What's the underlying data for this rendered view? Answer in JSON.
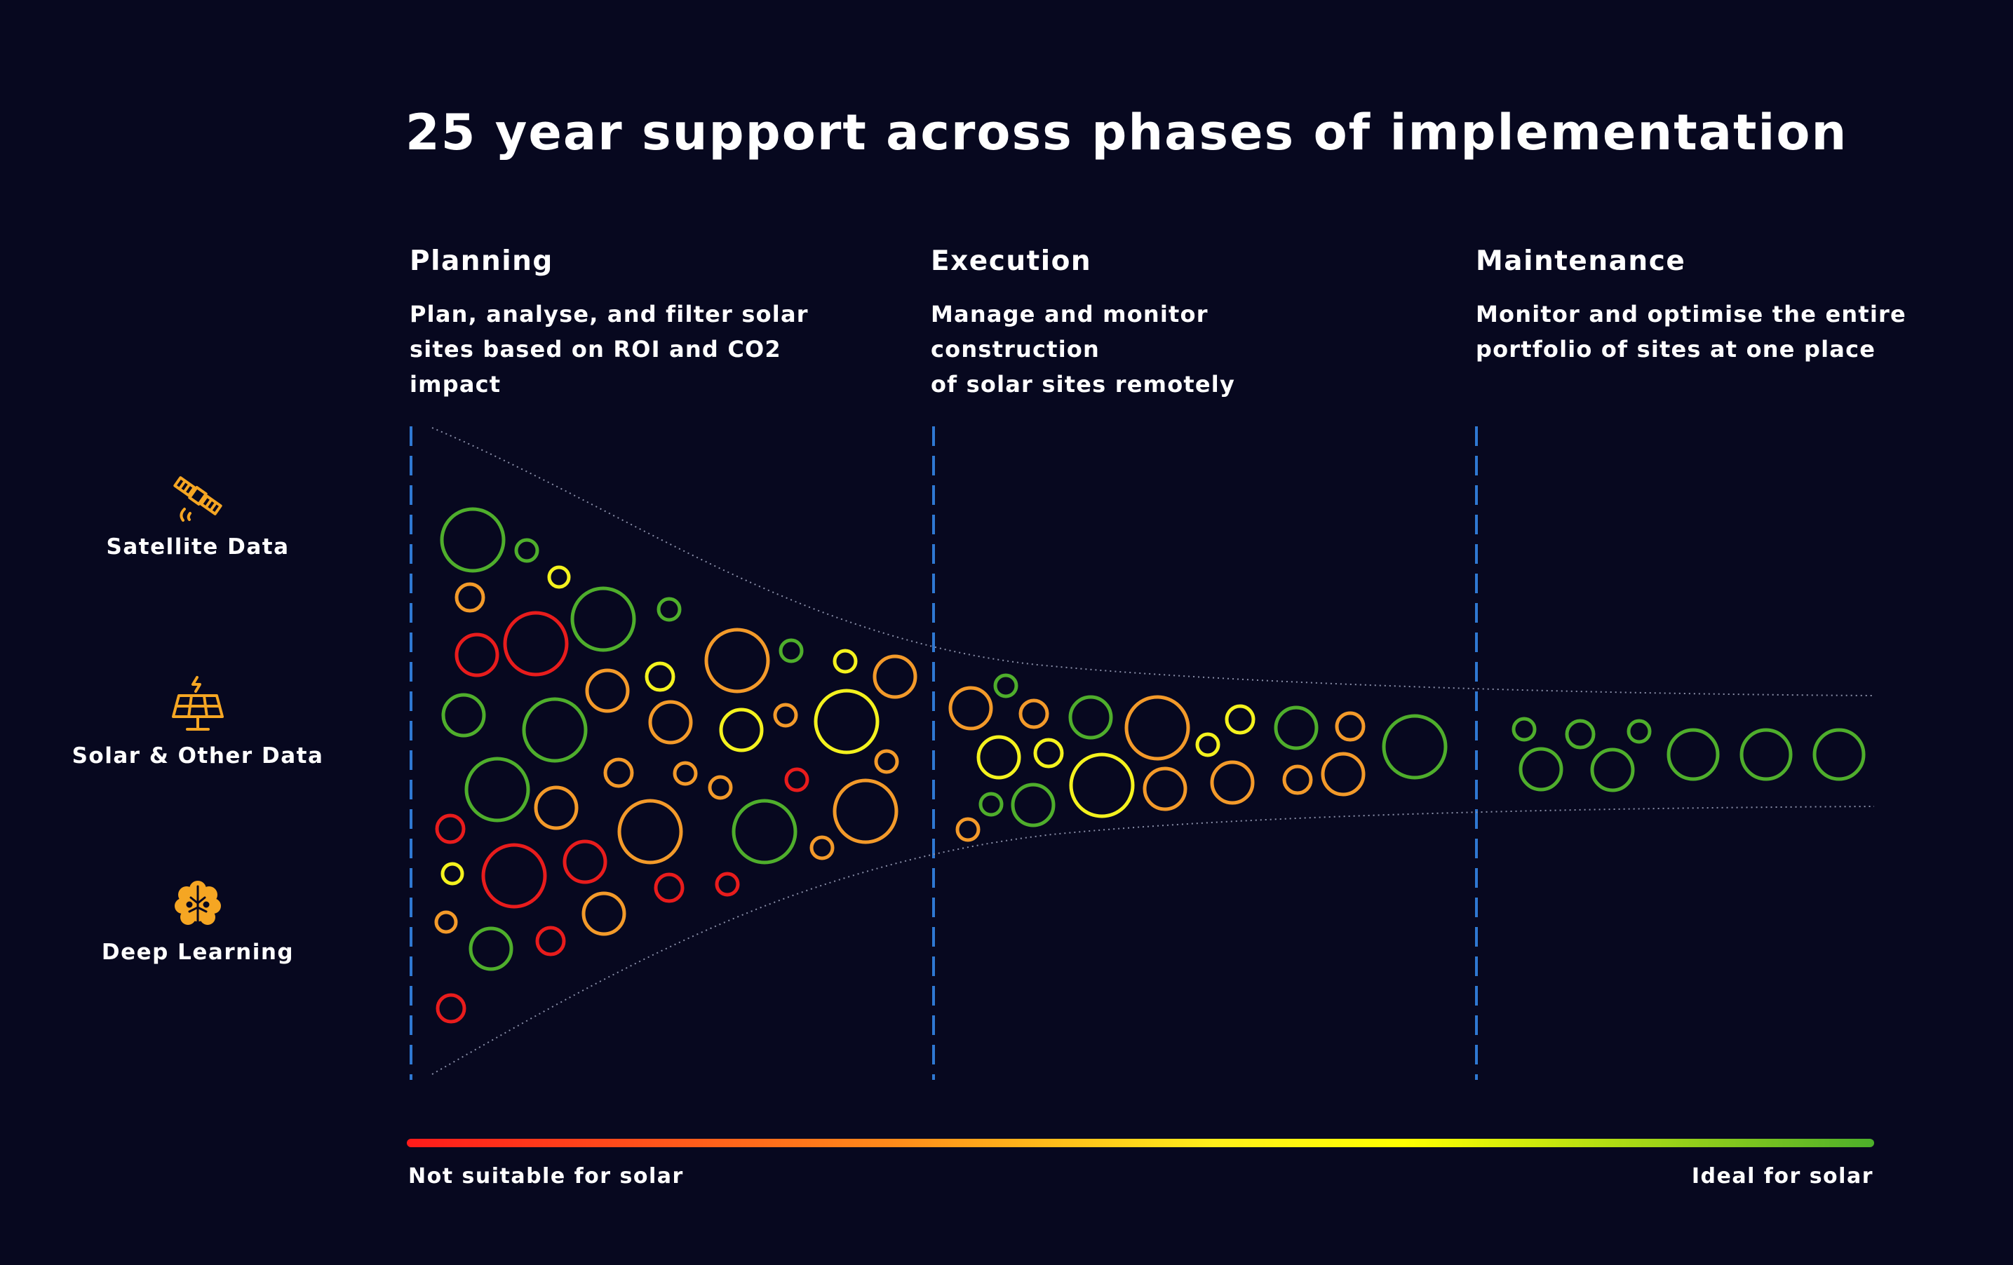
{
  "title": "25 year support across phases of implementation",
  "phases": [
    {
      "title": "Planning",
      "desc_line1": "Plan, analyse, and filter solar",
      "desc_line2": "sites based on ROI and CO2 impact"
    },
    {
      "title": "Execution",
      "desc_line1": "Manage and monitor construction",
      "desc_line2": "of solar sites remotely"
    },
    {
      "title": "Maintenance",
      "desc_line1": "Monitor and optimise the entire",
      "desc_line2": "portfolio of sites at one place"
    }
  ],
  "sources": [
    {
      "label": "Satellite Data",
      "icon": "satellite-icon"
    },
    {
      "label": "Solar & Other Data",
      "icon": "solar-panel-icon"
    },
    {
      "label": "Deep Learning",
      "icon": "brain-icon"
    }
  ],
  "scale": {
    "left_label": "Not suitable for solar",
    "right_label": "Ideal for solar",
    "colors": [
      "#ff1a1a",
      "#ff8a1a",
      "#ffee1a",
      "#ffff00",
      "#4caf2a"
    ]
  },
  "colors": {
    "background": "#07081f",
    "red": "#e81c1c",
    "orange": "#f39a2a",
    "yellow": "#f4f21e",
    "green": "#4fae2c",
    "divider": "#2f78d2",
    "icon": "#f5a623"
  }
}
